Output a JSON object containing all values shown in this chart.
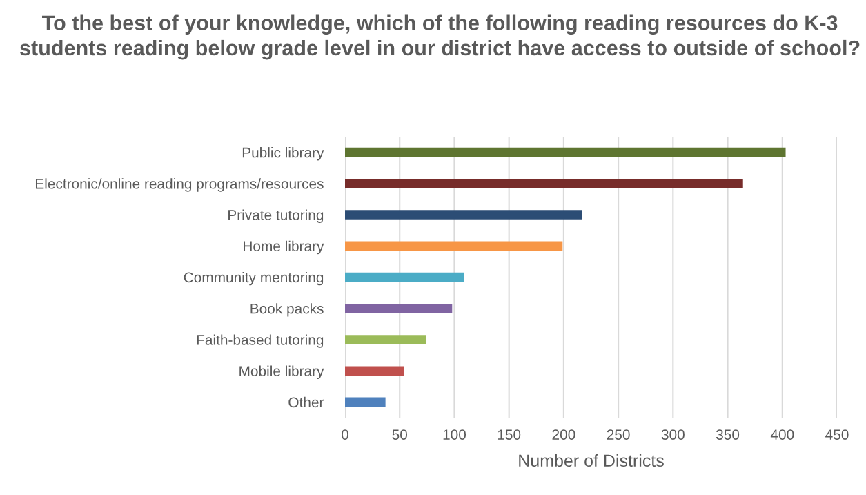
{
  "chart_data": {
    "type": "bar",
    "orientation": "horizontal",
    "title": "To the best of your knowledge, which of the following reading resources do K-3 students reading below grade level in our district have access to outside of school?",
    "xlabel": "Number of Districts",
    "categories": [
      "Public library",
      "Electronic/online reading programs/resources",
      "Private tutoring",
      "Home library",
      "Community mentoring",
      "Book packs",
      "Faith-based tutoring",
      "Mobile library",
      "Other"
    ],
    "values": [
      403,
      364,
      217,
      199,
      109,
      98,
      74,
      54,
      37
    ],
    "colors": [
      "#5e7530",
      "#772c2a",
      "#2c4d75",
      "#f79646",
      "#4bacc6",
      "#8064a2",
      "#9bbb59",
      "#c0504d",
      "#4f81bd"
    ],
    "xlim": [
      0,
      450
    ],
    "xticks": [
      0,
      50,
      100,
      150,
      200,
      250,
      300,
      350,
      400,
      450
    ],
    "grid": "x",
    "legend": false
  }
}
